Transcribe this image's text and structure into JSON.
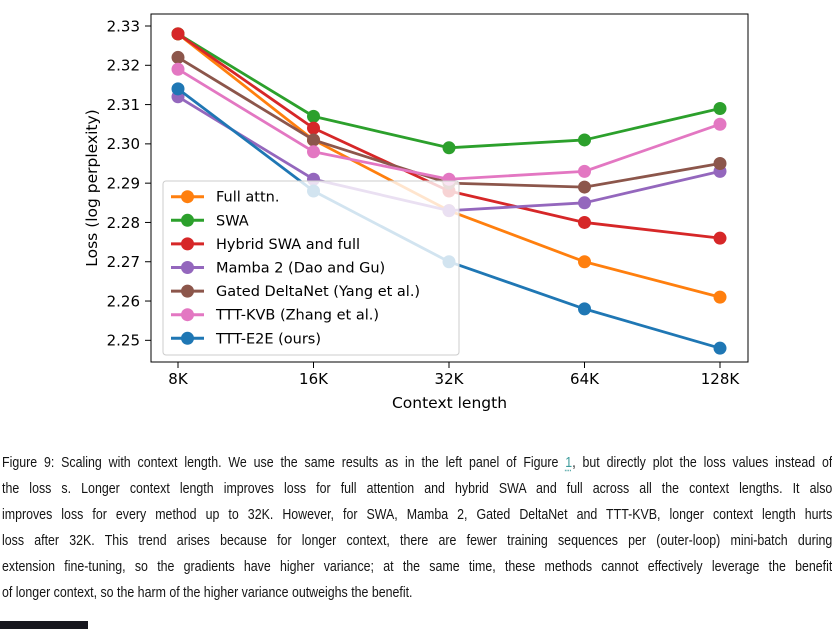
{
  "chart_data": {
    "type": "line",
    "title": "",
    "xlabel": "Context length",
    "ylabel": "Loss (log perplexity)",
    "categories": [
      "8K",
      "16K",
      "32K",
      "64K",
      "128K"
    ],
    "yticks": [
      2.33,
      2.32,
      2.31,
      2.3,
      2.29,
      2.28,
      2.27,
      2.26,
      2.25
    ],
    "ylim": [
      2.2444,
      2.3331
    ],
    "grid": false,
    "legend_position": "lower-left-inside",
    "marker": "circle",
    "series": [
      {
        "name": "Full attn.",
        "color": "#ff7f0e",
        "values": [
          2.328,
          2.301,
          2.283,
          2.27,
          2.261
        ]
      },
      {
        "name": "SWA",
        "color": "#2ca02c",
        "values": [
          2.328,
          2.307,
          2.299,
          2.301,
          2.309
        ]
      },
      {
        "name": "Hybrid SWA and full",
        "color": "#d62728",
        "values": [
          2.328,
          2.304,
          2.288,
          2.28,
          2.276
        ]
      },
      {
        "name": "Mamba 2 (Dao and Gu)",
        "color": "#9467bd",
        "values": [
          2.312,
          2.291,
          2.283,
          2.285,
          2.293
        ]
      },
      {
        "name": "Gated DeltaNet (Yang et al.)",
        "color": "#8c564b",
        "values": [
          2.322,
          2.301,
          2.29,
          2.289,
          2.295
        ]
      },
      {
        "name": "TTT-KVB (Zhang et al.)",
        "color": "#e377c2",
        "values": [
          2.319,
          2.298,
          2.291,
          2.293,
          2.305
        ]
      },
      {
        "name": "TTT-E2E (ours)",
        "color": "#1f77b4",
        "values": [
          2.314,
          2.288,
          2.27,
          2.258,
          2.248
        ]
      }
    ]
  },
  "caption": {
    "line1_prefix": "Figure 9: Scaling with context length. We use the same results as in the left panel of Figure ",
    "line1_link": "1",
    "line1_suffix": ", but directly plot the loss values instead of",
    "line2": "the loss s. Longer context length improves loss for full attention and hybrid SWA and full across all the context lengths. It also",
    "line3": "improves loss for every method up to 32K. However, for SWA, Mamba 2, Gated DeltaNet and TTT-KVB, longer context length hurts",
    "line4": "loss after 32K. This trend arises because for longer context, there are fewer training sequences per (outer-loop) mini-batch during",
    "line5": "extension fine-tuning, so the gradients have higher variance; at the same time, these methods cannot effectively leverage the benefit",
    "line6": "of longer context, so the harm of the higher variance outweighs the benefit.",
    "link_color": "#3d9b9b"
  }
}
